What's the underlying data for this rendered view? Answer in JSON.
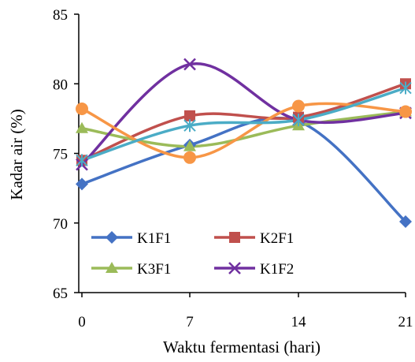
{
  "chart_data": {
    "type": "line",
    "title": "",
    "xlabel": "Waktu fermentasi (hari)",
    "ylabel": "Kadar air (%)",
    "x": [
      0,
      7,
      14,
      21
    ],
    "x_tick_labels": [
      "0",
      "7",
      "14",
      "21"
    ],
    "y_ticks": [
      65,
      70,
      75,
      80,
      85
    ],
    "y_tick_labels": [
      "65",
      "70",
      "75",
      "80",
      "85"
    ],
    "ylim": [
      65,
      85
    ],
    "grid": false,
    "smooth": true,
    "legend_position": "bottom-left, inside plot",
    "series": [
      {
        "name": "K1F1",
        "values": [
          72.8,
          75.6,
          77.3,
          70.1
        ],
        "color": "#4472C4",
        "marker": "diamond"
      },
      {
        "name": "K2F1",
        "values": [
          74.5,
          77.7,
          77.6,
          80.0
        ],
        "color": "#C0504D",
        "marker": "square"
      },
      {
        "name": "K3F1",
        "values": [
          76.8,
          75.5,
          77.0,
          78.0
        ],
        "color": "#9BBB59",
        "marker": "triangle"
      },
      {
        "name": "K1F2",
        "values": [
          74.2,
          81.4,
          77.4,
          77.9
        ],
        "color": "#7030A0",
        "marker": "x"
      },
      {
        "name": "",
        "values": [
          78.2,
          74.7,
          78.4,
          78.0
        ],
        "color": "#F79646",
        "marker": "circle"
      },
      {
        "name": "",
        "values": [
          74.5,
          77.0,
          77.4,
          79.7
        ],
        "color": "#4BACC6",
        "marker": "star"
      }
    ]
  }
}
